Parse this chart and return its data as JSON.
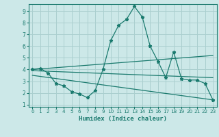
{
  "xlabel": "Humidex (Indice chaleur)",
  "bg_color": "#cce8e8",
  "grid_color": "#aacfcf",
  "line_color": "#1a7a6e",
  "xlim": [
    -0.5,
    23.5
  ],
  "ylim": [
    0.8,
    9.6
  ],
  "xticks": [
    0,
    1,
    2,
    3,
    4,
    5,
    6,
    7,
    8,
    9,
    10,
    11,
    12,
    13,
    14,
    15,
    16,
    17,
    18,
    19,
    20,
    21,
    22,
    23
  ],
  "yticks": [
    1,
    2,
    3,
    4,
    5,
    6,
    7,
    8,
    9
  ],
  "line1_x": [
    0,
    1,
    2,
    3,
    4,
    5,
    6,
    7,
    8,
    9,
    10,
    11,
    12,
    13,
    14,
    15,
    16,
    17,
    18,
    19,
    20,
    21,
    22,
    23
  ],
  "line1_y": [
    4.0,
    4.1,
    3.7,
    2.8,
    2.6,
    2.1,
    1.9,
    1.6,
    2.2,
    4.0,
    6.5,
    7.8,
    8.3,
    9.4,
    8.5,
    6.0,
    4.7,
    3.3,
    5.5,
    3.2,
    3.1,
    3.1,
    2.8,
    1.4
  ],
  "line2_x": [
    0,
    23
  ],
  "line2_y": [
    4.0,
    5.2
  ],
  "line3_x": [
    0,
    23
  ],
  "line3_y": [
    3.9,
    3.3
  ],
  "line4_x": [
    0,
    23
  ],
  "line4_y": [
    3.5,
    1.4
  ]
}
